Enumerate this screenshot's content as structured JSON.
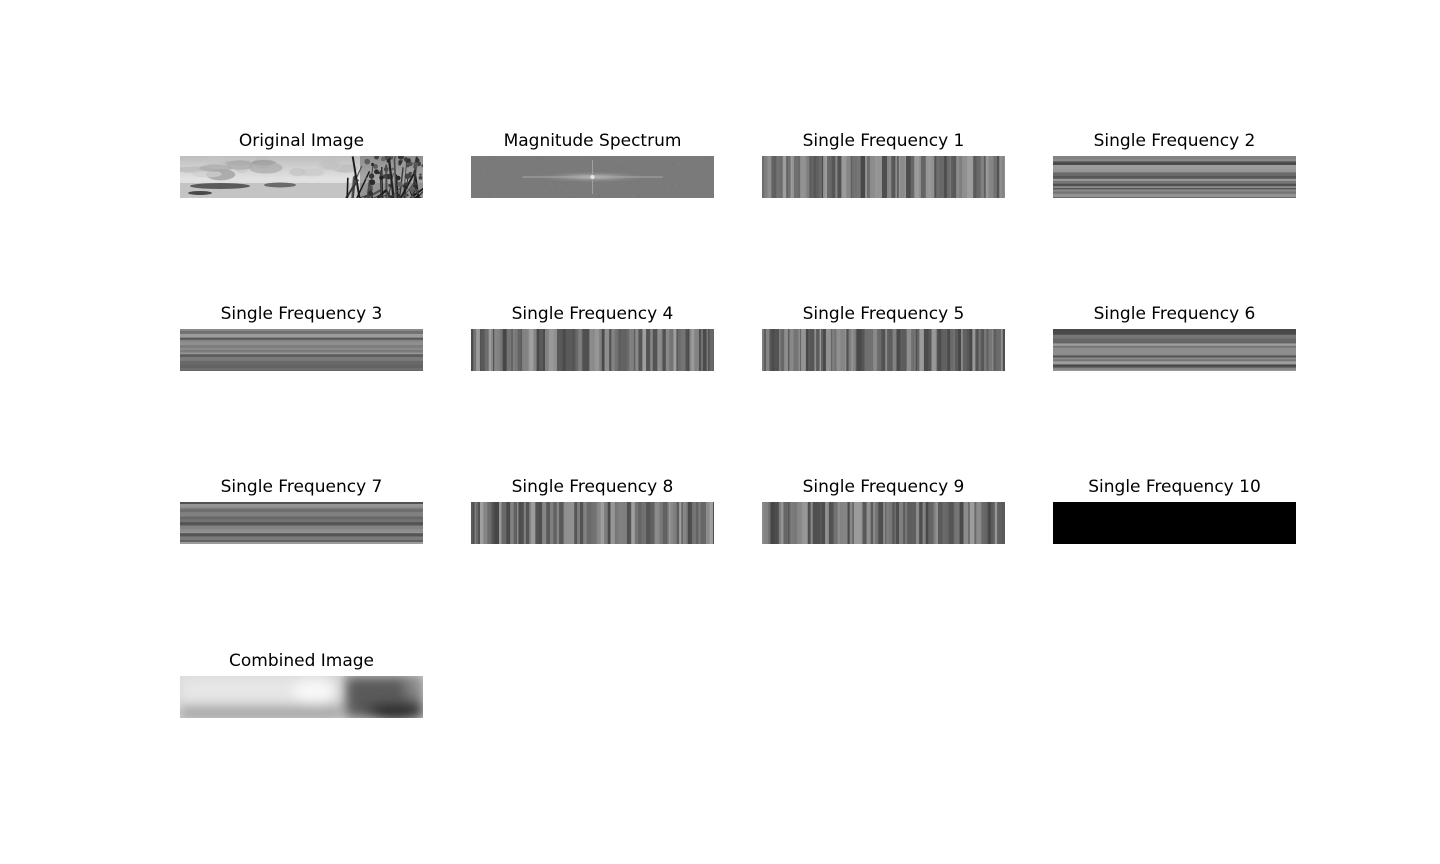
{
  "figure": {
    "panels": [
      {
        "id": "original",
        "title": "Original Image",
        "kind": "photo"
      },
      {
        "id": "magnitude",
        "title": "Magnitude Spectrum",
        "kind": "spectrum"
      },
      {
        "id": "freq1",
        "title": "Single Frequency 1",
        "kind": "vertical-stripes"
      },
      {
        "id": "freq2",
        "title": "Single Frequency 2",
        "kind": "horizontal-stripes"
      },
      {
        "id": "freq3",
        "title": "Single Frequency 3",
        "kind": "horizontal-stripes"
      },
      {
        "id": "freq4",
        "title": "Single Frequency 4",
        "kind": "vertical-stripes"
      },
      {
        "id": "freq5",
        "title": "Single Frequency 5",
        "kind": "vertical-stripes"
      },
      {
        "id": "freq6",
        "title": "Single Frequency 6",
        "kind": "horizontal-stripes"
      },
      {
        "id": "freq7",
        "title": "Single Frequency 7",
        "kind": "horizontal-stripes"
      },
      {
        "id": "freq8",
        "title": "Single Frequency 8",
        "kind": "vertical-stripes"
      },
      {
        "id": "freq9",
        "title": "Single Frequency 9",
        "kind": "vertical-stripes"
      },
      {
        "id": "freq10",
        "title": "Single Frequency 10",
        "kind": "solid-black"
      },
      {
        "id": "combined",
        "title": "Combined Image",
        "kind": "blurred"
      }
    ]
  }
}
